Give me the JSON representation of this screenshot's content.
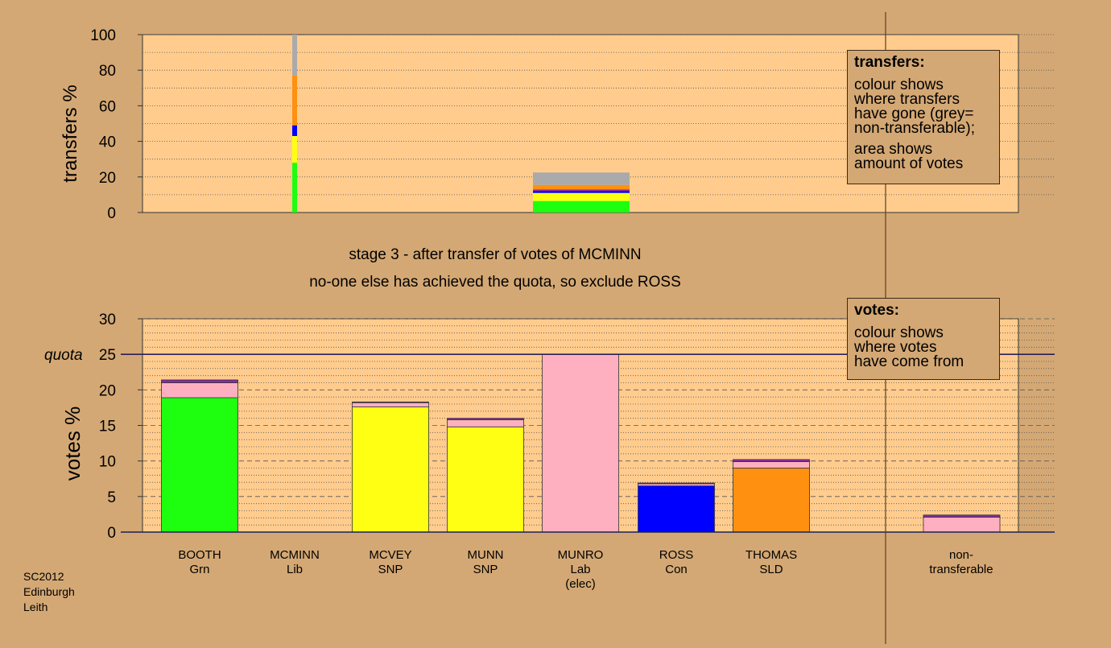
{
  "colors": {
    "background": "#d4a874",
    "plot_area": "#ffcc8e",
    "Grn": "#1eff0f",
    "SNP": "#ffff14",
    "Lab": "#ffb0c0",
    "Con": "#0000ff",
    "SLD": "#ff9010",
    "Lib": "#ffff14",
    "other": "#8c2aa0",
    "nontransferable": "#aaaaaa"
  },
  "captions": {
    "line1": "stage 3 - after transfer of votes of MCMINN",
    "line2": "no-one else has achieved the quota, so exclude ROSS"
  },
  "legend_transfers": {
    "title": "transfers:",
    "lines": [
      "colour shows",
      "where transfers",
      "have gone (grey=",
      "non-transferable);"
    ],
    "lines2": [
      "area shows",
      "amount of votes"
    ]
  },
  "legend_votes": {
    "title": "votes:",
    "lines": [
      "colour shows",
      "where votes",
      "have come from"
    ]
  },
  "credit": [
    "SC2012",
    "Edinburgh",
    "Leith"
  ],
  "chart_data": [
    {
      "type": "bar",
      "name": "transfers",
      "ylabel": "transfers %",
      "ylim": [
        0,
        100
      ],
      "yticks": [
        0,
        20,
        40,
        60,
        80,
        100
      ],
      "grid": true,
      "bars": [
        {
          "candidate": "MCMINN",
          "segments": [
            {
              "to": "BOOTH",
              "party": "Grn",
              "value": 28
            },
            {
              "to": "MCVEY/MUNN",
              "party": "SNP",
              "value": 15
            },
            {
              "to": "ROSS",
              "party": "Con",
              "value": 6
            },
            {
              "to": "THOMAS",
              "party": "SLD",
              "value": 28
            },
            {
              "to": "non-transferable",
              "party": "nontransferable",
              "value": 23
            }
          ]
        },
        {
          "candidate": "MUNRO",
          "segments": [
            {
              "to": "BOOTH",
              "party": "Grn",
              "value": 6.5
            },
            {
              "to": "MCVEY/MUNN",
              "party": "SNP",
              "value": 4.5
            },
            {
              "to": "ROSS",
              "party": "Con",
              "value": 1
            },
            {
              "to": "other",
              "party": "other",
              "value": 1
            },
            {
              "to": "THOMAS",
              "party": "SLD",
              "value": 2.5
            },
            {
              "to": "non-transferable",
              "party": "nontransferable",
              "value": 7
            }
          ]
        }
      ]
    },
    {
      "type": "bar",
      "name": "votes",
      "ylabel": "votes %",
      "ylim": [
        0,
        30
      ],
      "yticks": [
        0,
        5,
        10,
        15,
        20,
        25,
        30
      ],
      "quota": 25,
      "quota_label": "quota",
      "grid": true,
      "categories": [
        {
          "name": "BOOTH",
          "party": "Grn",
          "segments": [
            {
              "source": "Grn",
              "value": 18.9
            },
            {
              "source": "Lab",
              "value": 2.1
            },
            {
              "source": "other",
              "value": 0.4
            }
          ]
        },
        {
          "name": "MCMINN",
          "party": "Lib",
          "segments": []
        },
        {
          "name": "MCVEY",
          "party": "SNP",
          "segments": [
            {
              "source": "SNP",
              "value": 17.6
            },
            {
              "source": "Lab",
              "value": 0.6
            },
            {
              "source": "other",
              "value": 0.1
            }
          ]
        },
        {
          "name": "MUNN",
          "party": "SNP",
          "segments": [
            {
              "source": "SNP",
              "value": 14.8
            },
            {
              "source": "Lab",
              "value": 1.0
            },
            {
              "source": "other",
              "value": 0.2
            }
          ]
        },
        {
          "name": "MUNRO",
          "party": "Lab",
          "note": "(elec)",
          "segments": [
            {
              "source": "Lab",
              "value": 25.0
            }
          ]
        },
        {
          "name": "ROSS",
          "party": "Con",
          "segments": [
            {
              "source": "Con",
              "value": 6.5
            },
            {
              "source": "Lab",
              "value": 0.3
            },
            {
              "source": "other",
              "value": 0.1
            }
          ]
        },
        {
          "name": "THOMAS",
          "party": "SLD",
          "segments": [
            {
              "source": "SLD",
              "value": 9.0
            },
            {
              "source": "Lab",
              "value": 0.9
            },
            {
              "source": "other",
              "value": 0.3
            }
          ]
        }
      ],
      "nontransferable": {
        "label1": "non-",
        "label2": "transferable",
        "segments": [
          {
            "source": "Lab",
            "value": 2.1
          },
          {
            "source": "other",
            "value": 0.3
          }
        ]
      }
    }
  ]
}
